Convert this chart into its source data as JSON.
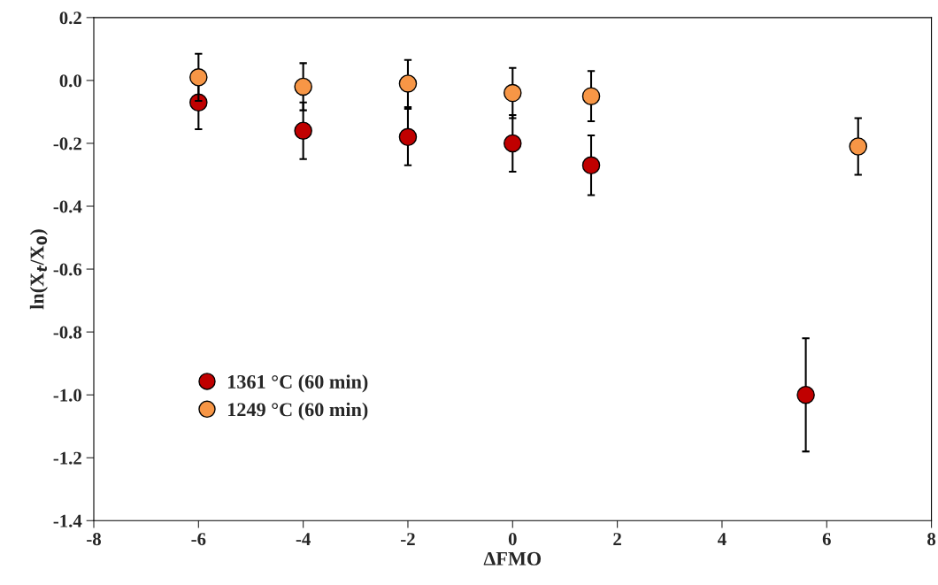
{
  "chart_data": {
    "type": "scatter",
    "xlabel": "ΔFMO",
    "ylabel": "ln(X$_{t}$/X$_{0}$)",
    "series": [
      {
        "name": "1361 °C (60 min)",
        "color": "#c00000",
        "x": [
          -6,
          -4,
          -2,
          0,
          1.5,
          5.6
        ],
        "values": [
          -0.07,
          -0.16,
          -0.18,
          -0.2,
          -0.27,
          -1.0
        ],
        "errors": [
          0.085,
          0.09,
          0.09,
          0.09,
          0.095,
          0.18
        ]
      },
      {
        "name": "1249 °C (60 min)",
        "color": "#f79646",
        "x": [
          -6,
          -4,
          -2,
          0,
          1.5,
          6.6
        ],
        "values": [
          0.01,
          -0.02,
          -0.01,
          -0.04,
          -0.05,
          -0.21
        ],
        "errors": [
          0.075,
          0.075,
          0.075,
          0.08,
          0.08,
          0.09
        ]
      }
    ],
    "xlim": [
      -8,
      8
    ],
    "xticks": [
      -8,
      -6,
      -4,
      -2,
      0,
      2,
      4,
      6,
      8
    ],
    "ylim": [
      -1.4,
      0.2
    ],
    "yticks": [
      {
        "value": -1.4,
        "label": "-1.4"
      },
      {
        "value": -1.2,
        "label": "-1.2"
      },
      {
        "value": -1.0,
        "label": "-1.0"
      },
      {
        "value": -0.8,
        "label": "-0.8"
      },
      {
        "value": -0.6,
        "label": "-0.6"
      },
      {
        "value": -0.4,
        "label": "-0.4"
      },
      {
        "value": -0.2,
        "label": "-0.2"
      },
      {
        "value": 0.0,
        "label": "0.0"
      },
      {
        "value": 0.2,
        "label": "0.2"
      }
    ],
    "grid": false,
    "legend": "bottom left",
    "marker": "circle"
  }
}
